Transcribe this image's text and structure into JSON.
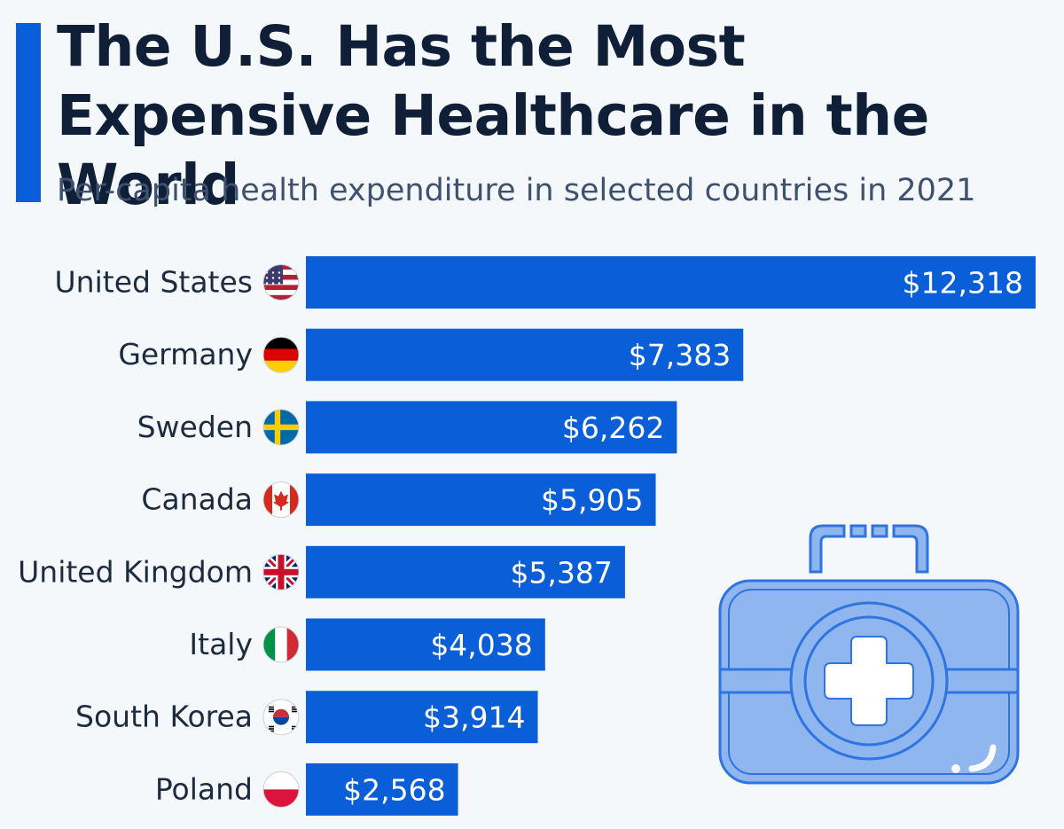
{
  "header": {
    "title": "The U.S. Has the Most Expensive Healthcare in the World",
    "subtitle": "Per-capita health expenditure in selected countries in 2021"
  },
  "colors": {
    "accent": "#0a5fd8",
    "bar": "#0a5fd8",
    "title": "#0f1f38",
    "background": "#f5f8fb",
    "kit_fill": "#8fb6ef",
    "kit_stroke": "#2f74e0"
  },
  "chart_data": {
    "type": "bar",
    "orientation": "horizontal",
    "title": "The U.S. Has the Most Expensive Healthcare in the World",
    "subtitle": "Per-capita health expenditure in selected countries in 2021",
    "xlabel": "",
    "ylabel": "",
    "xlim": [
      0,
      12318
    ],
    "grid": false,
    "categories": [
      "United States",
      "Germany",
      "Sweden",
      "Canada",
      "United Kingdom",
      "Italy",
      "South Korea",
      "Poland"
    ],
    "values": [
      12318,
      7383,
      6262,
      5905,
      5387,
      4038,
      3914,
      2568
    ],
    "value_labels": [
      "$12,318",
      "$7,383",
      "$6,262",
      "$5,905",
      "$5,387",
      "$4,038",
      "$3,914",
      "$2,568"
    ],
    "flags": [
      "us-flag-icon",
      "germany-flag-icon",
      "sweden-flag-icon",
      "canada-flag-icon",
      "uk-flag-icon",
      "italy-flag-icon",
      "south-korea-flag-icon",
      "poland-flag-icon"
    ]
  },
  "illustration": {
    "icon": "first-aid-kit-icon"
  }
}
